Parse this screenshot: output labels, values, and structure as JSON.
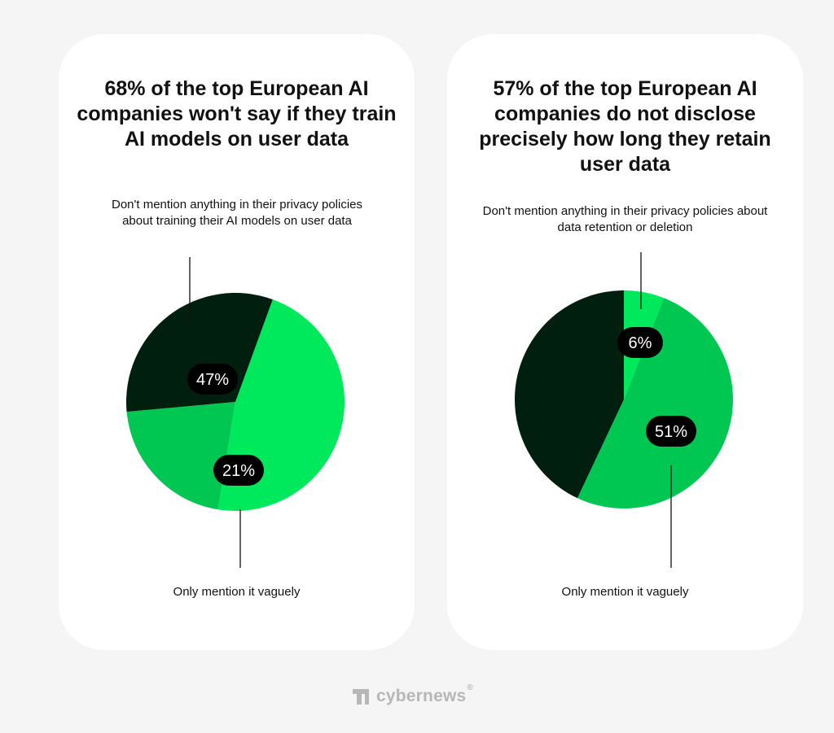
{
  "colors": {
    "background": "#f5f5f5",
    "card": "#ffffff",
    "bright_green": "#00e85c",
    "medium_green": "#00c752",
    "dark_green": "#001f0f",
    "label_pill": "#000000",
    "logo_gray": "#b7b7b7"
  },
  "chart_data": [
    {
      "type": "pie",
      "title": "68% of the top European AI companies won't say if they train AI models on user data",
      "slices": [
        {
          "value": 47,
          "label": "47%",
          "color": "#00e85c",
          "description": "Don't mention anything in their privacy policies about training their AI models on user data"
        },
        {
          "value": 21,
          "label": "21%",
          "color": "#00c752",
          "description": "Only mention it vaguely"
        },
        {
          "value": 32,
          "label": "",
          "color": "#001f0f",
          "description": ""
        }
      ],
      "annotations": {
        "top": "Don't mention anything in their privacy policies about training their AI models on user data",
        "bottom": "Only mention it vaguely"
      }
    },
    {
      "type": "pie",
      "title": "57% of the top European AI companies do not disclose precisely how long they retain user data",
      "slices": [
        {
          "value": 6,
          "label": "6%",
          "color": "#00e85c",
          "description": "Don't mention anything in their privacy policies about data retention or deletion"
        },
        {
          "value": 51,
          "label": "51%",
          "color": "#00c752",
          "description": "Only mention it vaguely"
        },
        {
          "value": 43,
          "label": "",
          "color": "#001f0f",
          "description": ""
        }
      ],
      "annotations": {
        "top": "Don't mention anything in their privacy policies about data retention or deletion",
        "bottom": "Only mention it vaguely"
      }
    }
  ],
  "footer": {
    "logo_icon": "cybernews-logo-icon",
    "brand": "cybernews",
    "registered_mark": "®"
  }
}
